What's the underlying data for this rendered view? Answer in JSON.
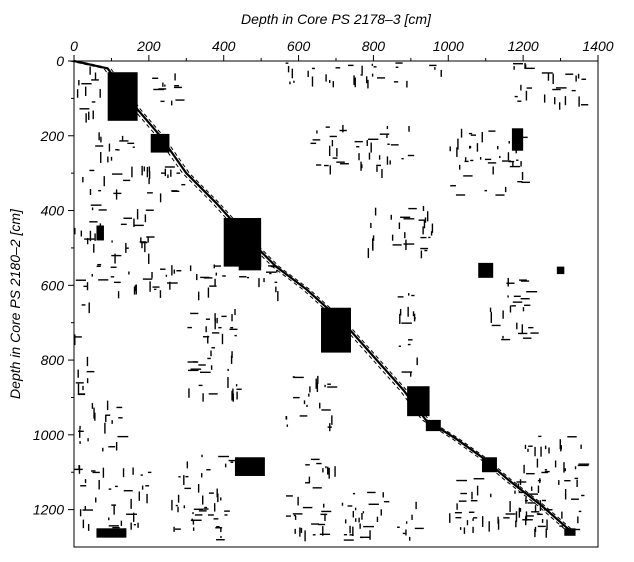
{
  "chart_data": {
    "type": "heatmap",
    "subtype": "recurrence-plot",
    "title": "",
    "xlabel": "Depth in Core PS 2178–3  [cm]",
    "ylabel": "Depth in Core PS 2180–2  [cm]",
    "x_axis_position": "top",
    "y_axis_inverted": true,
    "xlim": [
      0,
      1400
    ],
    "ylim": [
      0,
      1300
    ],
    "xticks": [
      0,
      200,
      400,
      600,
      800,
      1000,
      1200,
      1400
    ],
    "yticks": [
      0,
      200,
      400,
      600,
      800,
      1000,
      1200
    ],
    "grid": false,
    "legend": "none",
    "color": "#000000",
    "diagonal_path": [
      [
        0,
        0
      ],
      [
        90,
        20
      ],
      [
        170,
        130
      ],
      [
        230,
        200
      ],
      [
        300,
        300
      ],
      [
        380,
        380
      ],
      [
        470,
        480
      ],
      [
        540,
        550
      ],
      [
        620,
        610
      ],
      [
        720,
        700
      ],
      [
        800,
        790
      ],
      [
        880,
        880
      ],
      [
        940,
        960
      ],
      [
        1020,
        1010
      ],
      [
        1090,
        1060
      ],
      [
        1160,
        1120
      ],
      [
        1250,
        1190
      ],
      [
        1330,
        1260
      ]
    ],
    "dense_regions": [
      {
        "x": [
          90,
          170
        ],
        "y": [
          30,
          160
        ]
      },
      {
        "x": [
          205,
          255
        ],
        "y": [
          195,
          245
        ]
      },
      {
        "x": [
          400,
          500
        ],
        "y": [
          420,
          550
        ]
      },
      {
        "x": [
          440,
          500
        ],
        "y": [
          500,
          560
        ]
      },
      {
        "x": [
          1080,
          1120
        ],
        "y": [
          540,
          580
        ]
      },
      {
        "x": [
          1290,
          1310
        ],
        "y": [
          550,
          570
        ]
      },
      {
        "x": [
          660,
          740
        ],
        "y": [
          660,
          780
        ]
      },
      {
        "x": [
          890,
          950
        ],
        "y": [
          870,
          950
        ]
      },
      {
        "x": [
          940,
          980
        ],
        "y": [
          960,
          990
        ]
      },
      {
        "x": [
          1090,
          1130
        ],
        "y": [
          1060,
          1100
        ]
      },
      {
        "x": [
          430,
          510
        ],
        "y": [
          1060,
          1110
        ]
      },
      {
        "x": [
          1170,
          1200
        ],
        "y": [
          180,
          240
        ]
      },
      {
        "x": [
          60,
          140
        ],
        "y": [
          1250,
          1275
        ]
      },
      {
        "x": [
          1310,
          1340
        ],
        "y": [
          1250,
          1270
        ]
      },
      {
        "x": [
          60,
          80
        ],
        "y": [
          440,
          480
        ]
      }
    ],
    "sparse_regions": [
      {
        "x": [
          0,
          70
        ],
        "y": [
          0,
          160
        ]
      },
      {
        "x": [
          30,
          170
        ],
        "y": [
          180,
          260
        ]
      },
      {
        "x": [
          200,
          300
        ],
        "y": [
          20,
          120
        ]
      },
      {
        "x": [
          620,
          900
        ],
        "y": [
          170,
          290
        ]
      },
      {
        "x": [
          1000,
          1200
        ],
        "y": [
          180,
          360
        ]
      },
      {
        "x": [
          20,
          320
        ],
        "y": [
          280,
          360
        ]
      },
      {
        "x": [
          0,
          200
        ],
        "y": [
          380,
          520
        ]
      },
      {
        "x": [
          560,
          1000
        ],
        "y": [
          0,
          60
        ]
      },
      {
        "x": [
          1170,
          1360
        ],
        "y": [
          0,
          120
        ]
      },
      {
        "x": [
          0,
          560
        ],
        "y": [
          540,
          620
        ]
      },
      {
        "x": [
          860,
          920
        ],
        "y": [
          600,
          840
        ]
      },
      {
        "x": [
          560,
          700
        ],
        "y": [
          840,
          980
        ]
      },
      {
        "x": [
          0,
          120
        ],
        "y": [
          900,
          1040
        ]
      },
      {
        "x": [
          1100,
          1220
        ],
        "y": [
          580,
          760
        ]
      },
      {
        "x": [
          600,
          700
        ],
        "y": [
          1050,
          1150
        ]
      },
      {
        "x": [
          1180,
          1360
        ],
        "y": [
          1000,
          1260
        ]
      },
      {
        "x": [
          560,
          920
        ],
        "y": [
          1150,
          1280
        ]
      },
      {
        "x": [
          250,
          420
        ],
        "y": [
          1050,
          1280
        ]
      },
      {
        "x": [
          0,
          200
        ],
        "y": [
          1080,
          1250
        ]
      },
      {
        "x": [
          1000,
          1250
        ],
        "y": [
          1100,
          1250
        ]
      },
      {
        "x": [
          780,
          960
        ],
        "y": [
          380,
          520
        ]
      },
      {
        "x": [
          300,
          440
        ],
        "y": [
          640,
          900
        ]
      },
      {
        "x": [
          0,
          40
        ],
        "y": [
          600,
          900
        ]
      }
    ]
  }
}
